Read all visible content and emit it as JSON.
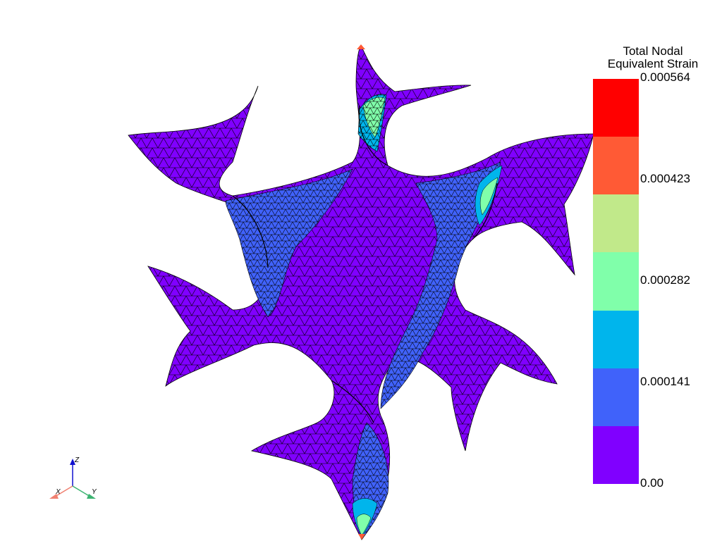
{
  "scalar_bar": {
    "title_line1": "Total Nodal",
    "title_line2": "Equivalent Strain",
    "labels": [
      "0.000564",
      "0.000423",
      "0.000282",
      "0.000141",
      "0.00"
    ],
    "bands": [
      {
        "color": "#ff0000"
      },
      {
        "color": "#ff5a35"
      },
      {
        "color": "#c1e98a"
      },
      {
        "color": "#80ffaa"
      },
      {
        "color": "#00b5ec"
      },
      {
        "color": "#4062fa"
      },
      {
        "color": "#8000ff"
      }
    ]
  },
  "axes": {
    "x_label": "X",
    "y_label": "Y",
    "z_label": "Z",
    "x_color": "#f08070",
    "y_color": "#3cb371",
    "z_color": "#1010d0"
  },
  "mesh": {
    "base_color": "#8000ff",
    "low_color": "#4062fa",
    "mid_color": "#00b5ec",
    "high_color": "#80ffaa",
    "edge_color": "#000000"
  }
}
